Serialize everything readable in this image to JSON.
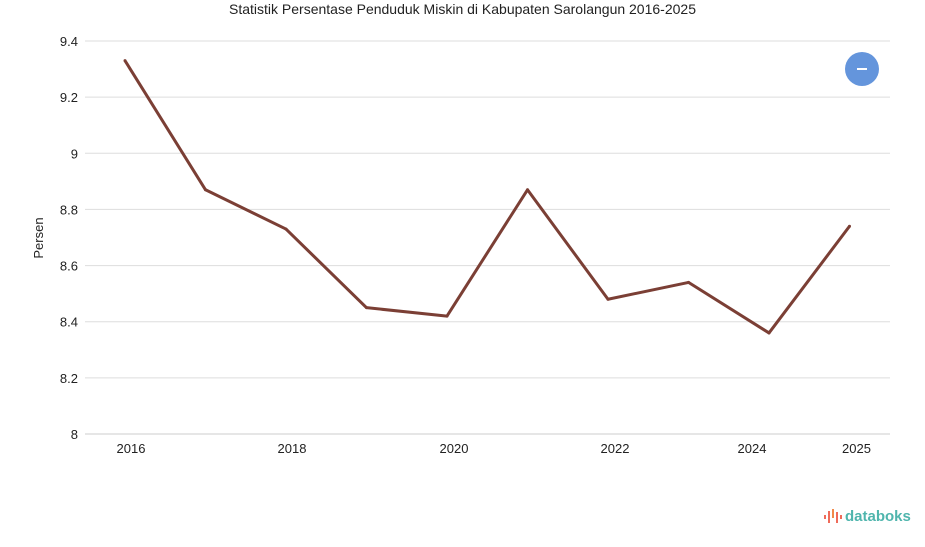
{
  "chart_data": {
    "type": "line",
    "title": "Statistik Persentase Penduduk Miskin di Kabupaten Sarolangun 2016-2025",
    "xlabel": "",
    "ylabel": "Persen",
    "x": [
      2016,
      2017,
      2018,
      2019,
      2020,
      2021,
      2022,
      2023,
      2024,
      2025
    ],
    "series": [
      {
        "name": "Persentase Penduduk Miskin",
        "values": [
          9.33,
          8.87,
          8.73,
          8.45,
          8.42,
          8.87,
          8.48,
          8.54,
          8.36,
          8.74
        ],
        "color": "#7b3f35"
      }
    ],
    "xticks": [
      "2016",
      "2018",
      "2020",
      "2022",
      "2024",
      "2025"
    ],
    "yticks": [
      "8",
      "8.2",
      "8.4",
      "8.6",
      "8.8",
      "9",
      "9.2",
      "9.4"
    ],
    "ylim": [
      8,
      9.4
    ],
    "grid": true,
    "legend": "top-right"
  },
  "legend_button_color": "#6495dc",
  "brand": "databoks"
}
